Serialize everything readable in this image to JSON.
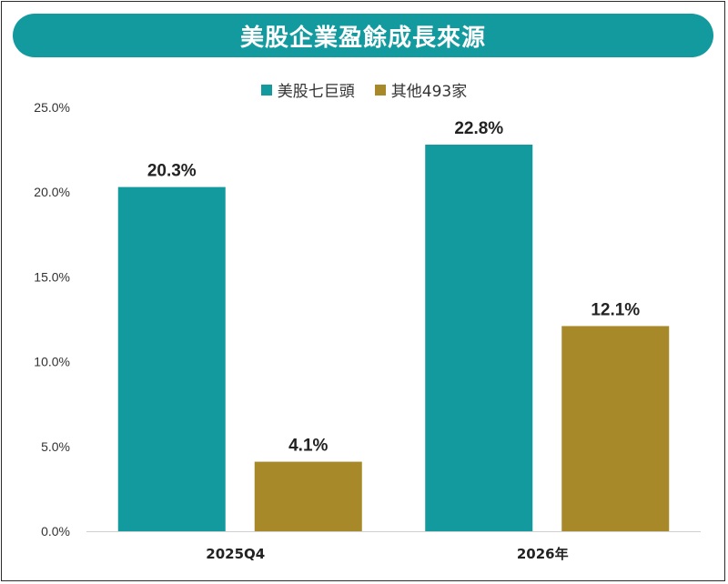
{
  "colors": {
    "series1": "#139a9f",
    "series2": "#a8892a",
    "title_bg": "#139a9f"
  },
  "chart_data": {
    "type": "bar",
    "title": "美股企業盈餘成長來源",
    "categories": [
      "2025Q4",
      "2026年"
    ],
    "series": [
      {
        "name": "美股七巨頭",
        "values": [
          20.3,
          22.8
        ],
        "labels": [
          "20.3%",
          "22.8%"
        ]
      },
      {
        "name": "其他493家",
        "values": [
          4.1,
          12.1
        ],
        "labels": [
          "4.1%",
          "12.1%"
        ]
      }
    ],
    "ylim": [
      0,
      25
    ],
    "yticks": [
      0,
      5,
      10,
      15,
      20,
      25
    ],
    "ytick_labels": [
      "0.0%",
      "5.0%",
      "10.0%",
      "15.0%",
      "20.0%",
      "25.0%"
    ],
    "xlabel": "",
    "ylabel": "",
    "legend": "top-center",
    "grid": false
  }
}
